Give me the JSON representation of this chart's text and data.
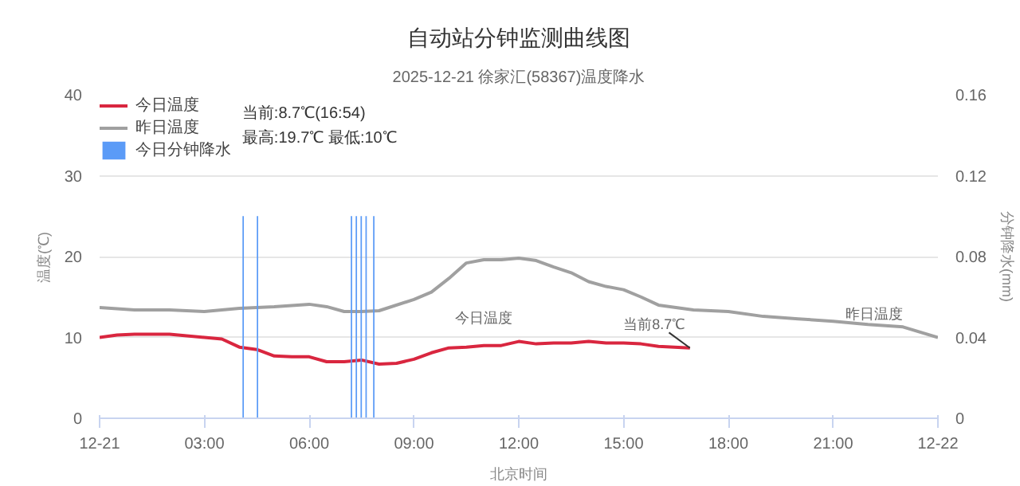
{
  "chart_data": {
    "type": "line",
    "title": "自动站分钟监测曲线图",
    "subtitle": "2025-12-21 徐家汇(58367)温度降水",
    "xlabel": "北京时间",
    "ylabel": "温度(℃)",
    "y2label": "分钟降水(mm)",
    "xlim": [
      0,
      24
    ],
    "xticks": [
      {
        "value": 0,
        "label": "12-21"
      },
      {
        "value": 3,
        "label": "03:00"
      },
      {
        "value": 6,
        "label": "06:00"
      },
      {
        "value": 9,
        "label": "09:00"
      },
      {
        "value": 12,
        "label": "12:00"
      },
      {
        "value": 15,
        "label": "15:00"
      },
      {
        "value": 18,
        "label": "18:00"
      },
      {
        "value": 21,
        "label": "21:00"
      },
      {
        "value": 24,
        "label": "12-22"
      }
    ],
    "ylim": [
      0,
      40
    ],
    "yticks": [
      0,
      10,
      20,
      30,
      40
    ],
    "y2lim": [
      0,
      0.16
    ],
    "y2ticks": [
      0,
      0.04,
      0.08,
      0.12,
      0.16
    ],
    "grid": "y",
    "legend": "top left",
    "series": [
      {
        "name": "今日温度",
        "color": "#d9263f",
        "x": [
          0,
          0.5,
          1,
          2,
          3,
          3.5,
          4,
          4.5,
          5,
          5.5,
          6,
          6.5,
          7,
          7.5,
          8,
          8.5,
          9,
          9.5,
          10,
          10.5,
          11,
          11.5,
          12,
          12.5,
          13,
          13.5,
          14,
          14.5,
          15,
          15.5,
          16,
          16.9
        ],
        "values": [
          10.0,
          10.3,
          10.4,
          10.4,
          10.0,
          9.8,
          8.8,
          8.5,
          7.7,
          7.6,
          7.6,
          7.0,
          7.0,
          7.2,
          6.7,
          6.8,
          7.3,
          8.1,
          8.7,
          8.8,
          9.0,
          9.0,
          9.5,
          9.2,
          9.3,
          9.3,
          9.5,
          9.3,
          9.3,
          9.2,
          8.9,
          8.7
        ]
      },
      {
        "name": "昨日温度",
        "color": "#a0a0a0",
        "x": [
          0,
          1,
          2,
          3,
          4,
          5,
          6,
          6.5,
          7,
          7.5,
          8,
          9,
          9.5,
          10,
          10.5,
          11,
          11.5,
          12,
          12.5,
          13,
          13.5,
          14,
          14.5,
          15,
          15.5,
          16,
          16.5,
          17,
          18,
          19,
          20,
          21,
          22,
          23,
          24
        ],
        "values": [
          13.7,
          13.4,
          13.4,
          13.2,
          13.6,
          13.8,
          14.1,
          13.8,
          13.2,
          13.2,
          13.3,
          14.7,
          15.6,
          17.3,
          19.2,
          19.6,
          19.6,
          19.8,
          19.5,
          18.7,
          18.0,
          16.9,
          16.3,
          15.9,
          15.0,
          14.0,
          13.7,
          13.4,
          13.2,
          12.6,
          12.3,
          12.0,
          11.6,
          11.3,
          10.0
        ]
      },
      {
        "name": "今日分钟降水",
        "type": "bar",
        "axis": "y2",
        "color": "#5b9bf7",
        "x": [
          4.11,
          4.52,
          7.21,
          7.35,
          7.49,
          7.63,
          7.85
        ],
        "values": [
          0.1,
          0.1,
          0.1,
          0.1,
          0.1,
          0.1,
          0.1
        ]
      }
    ],
    "annotations": [
      "当前:8.7℃(16:54)",
      "最高:19.7℃ 最低:10℃",
      {
        "text": "当前8.7℃",
        "x": 16.9,
        "y": 8.7
      },
      {
        "text": "今日温度",
        "x": 12,
        "y": 9.5
      },
      {
        "text": "昨日温度",
        "x": 24,
        "y": 10.0
      }
    ]
  }
}
